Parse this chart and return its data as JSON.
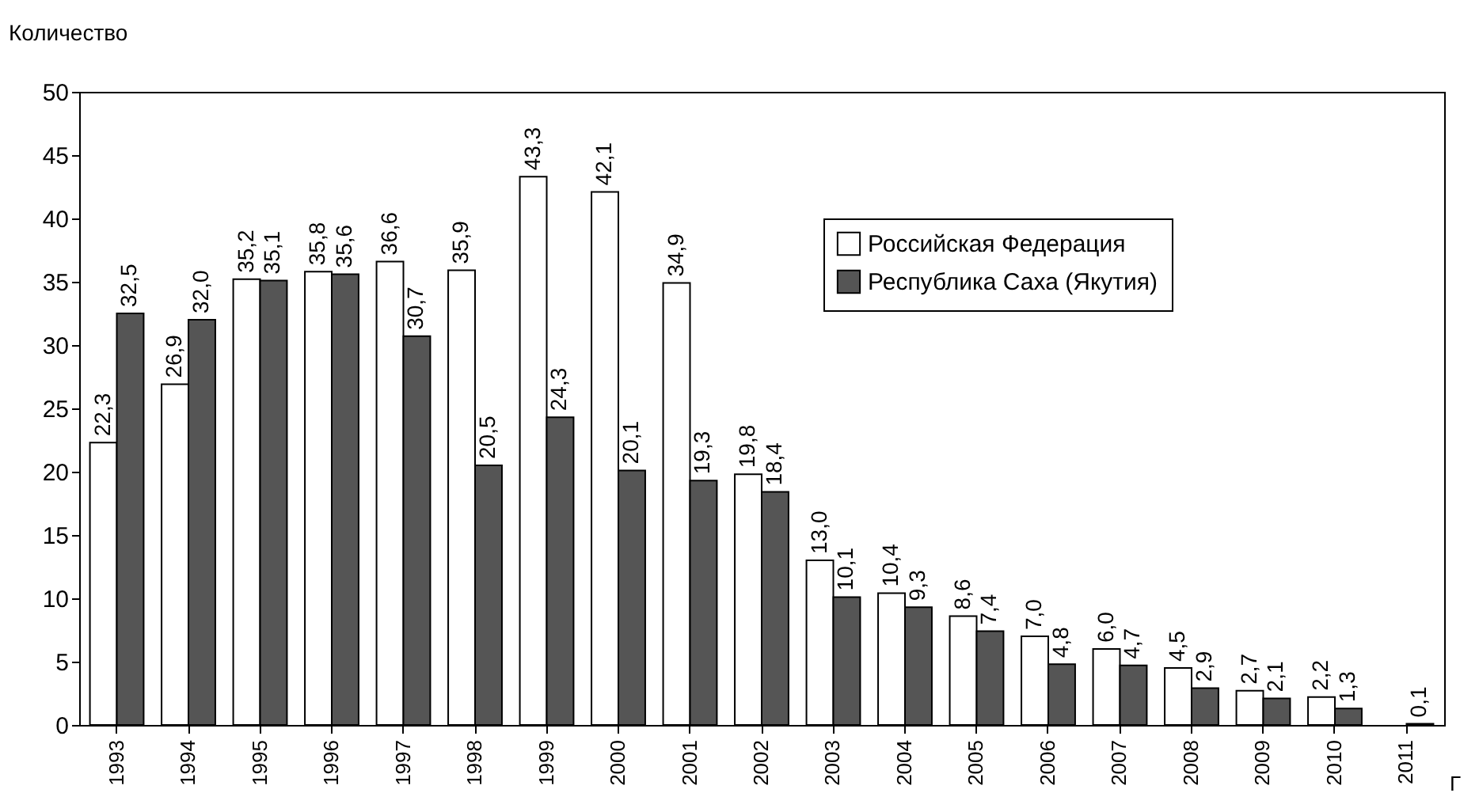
{
  "chart_data": {
    "type": "bar",
    "xlabel": "Г",
    "ylabel": "Количество",
    "categories": [
      "1993",
      "1994",
      "1995",
      "1996",
      "1997",
      "1998",
      "1999",
      "2000",
      "2001",
      "2002",
      "2003",
      "2004",
      "2005",
      "2006",
      "2007",
      "2008",
      "2009",
      "2010",
      "2011"
    ],
    "series": [
      {
        "name": "Российская Федерация",
        "color": "#ffffff",
        "values": [
          22.3,
          26.9,
          35.2,
          35.8,
          36.6,
          35.9,
          43.3,
          42.1,
          34.9,
          19.8,
          13.0,
          10.4,
          8.6,
          7.0,
          6.0,
          4.5,
          2.7,
          2.2,
          null
        ],
        "value_labels": [
          "22,3",
          "26,9",
          "35,2",
          "35,8",
          "36,6",
          "35,9",
          "43,3",
          "42,1",
          "34,9",
          "19,8",
          "13,0",
          "10,4",
          "8,6",
          "7,0",
          "6,0",
          "4,5",
          "2,7",
          "2,2",
          null
        ]
      },
      {
        "name": "Республика Саха (Якутия)",
        "color": "#555555",
        "values": [
          32.5,
          32.0,
          35.1,
          35.6,
          30.7,
          20.5,
          24.3,
          20.1,
          19.3,
          18.4,
          10.1,
          9.3,
          7.4,
          4.8,
          4.7,
          2.9,
          2.1,
          1.3,
          0.1
        ],
        "value_labels": [
          "32,5",
          "32,0",
          "35,1",
          "35,6",
          "30,7",
          "20,5",
          "24,3",
          "20,1",
          "19,3",
          "18,4",
          "10,1",
          "9,3",
          "7,4",
          "4,8",
          "4,7",
          "2,9",
          "2,1",
          "1,3",
          "0,1"
        ]
      }
    ],
    "ylim": [
      0,
      50
    ],
    "yticks": [
      0,
      5,
      10,
      15,
      20,
      25,
      30,
      35,
      40,
      45,
      50
    ],
    "grid": false,
    "legend": "top right"
  }
}
